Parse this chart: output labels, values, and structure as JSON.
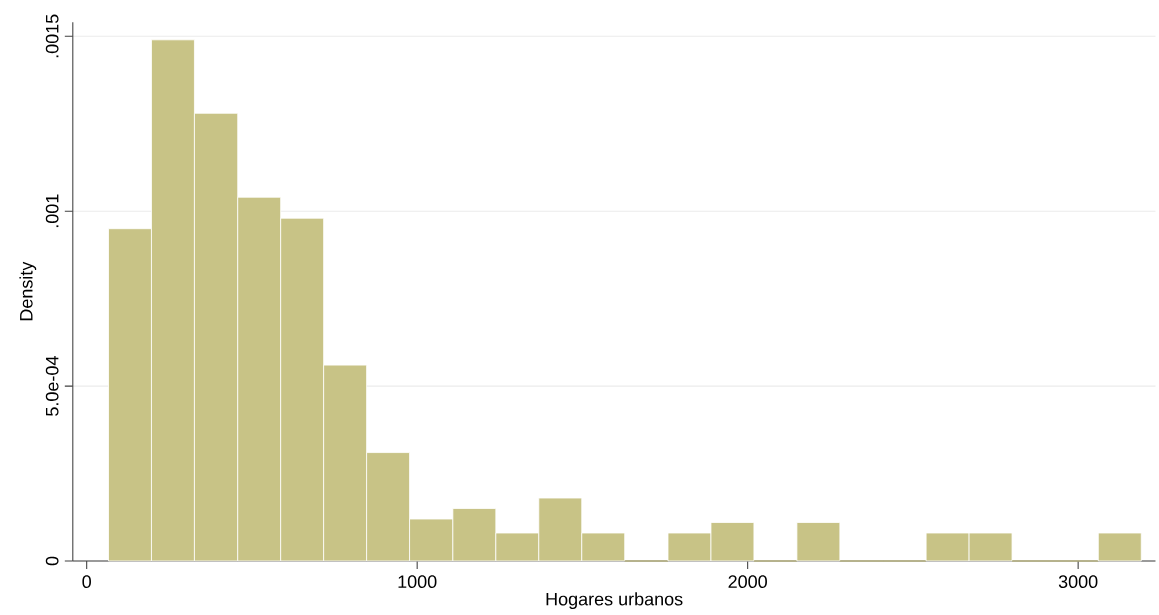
{
  "chart_data": {
    "type": "histogram",
    "xlabel": "Hogares urbanos",
    "ylabel": "Density",
    "bins": [
      66,
      196,
      326,
      457,
      587,
      717,
      847,
      977,
      1108,
      1238,
      1368,
      1498,
      1628,
      1759,
      1889,
      2019,
      2149,
      2279,
      2410,
      2540,
      2670,
      2800,
      2930,
      3061,
      3191
    ],
    "values": [
      0.00095,
      0.00149,
      0.00128,
      0.00104,
      0.00098,
      0.00056,
      0.00031,
      0.00012,
      0.00015,
      8e-05,
      0.00018,
      8e-05,
      0,
      8e-05,
      0.00011,
      0,
      0.00011,
      0,
      0,
      8e-05,
      8e-05,
      0,
      0,
      8e-05
    ],
    "color": "#c8c386",
    "xlim": [
      -42,
      3234
    ],
    "ylim": [
      0,
      0.00154
    ],
    "xticks": [
      0,
      1000,
      2000,
      3000
    ],
    "yticks": [
      {
        "value": 0,
        "label": "0"
      },
      {
        "value": 0.0005,
        "label": "5.0e-04"
      },
      {
        "value": 0.001,
        "label": ".001"
      },
      {
        "value": 0.0015,
        "label": ".0015"
      }
    ],
    "grid": "y"
  }
}
